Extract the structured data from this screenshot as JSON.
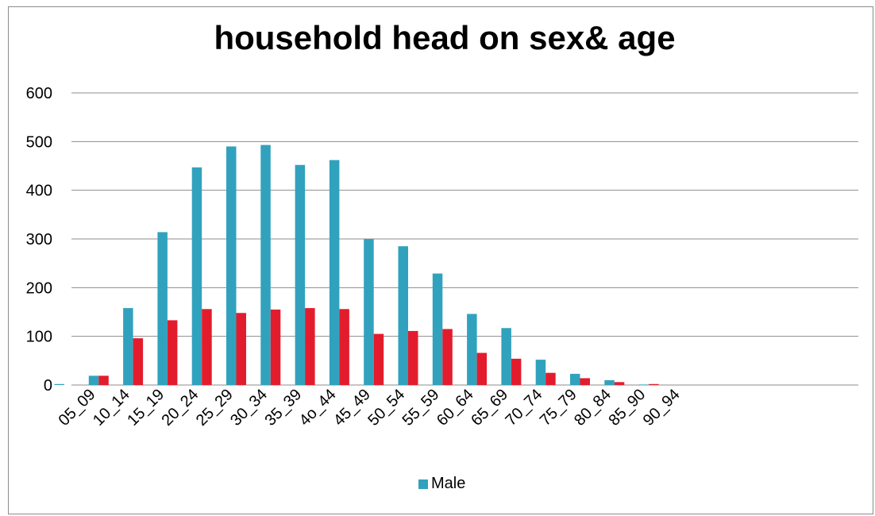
{
  "chart_data": {
    "type": "bar",
    "title": "household head on sex& age",
    "xlabel": "",
    "ylabel": "",
    "ylim": [
      0,
      600
    ],
    "yticks": [
      0,
      100,
      200,
      300,
      400,
      500,
      600
    ],
    "grid": true,
    "legend_position": "bottom",
    "categories": [
      "05_09",
      "10_14",
      "15_19",
      "20_24",
      "25_29",
      "30_34",
      "35_39",
      "4o_44",
      "45_49",
      "50_54",
      "55_59",
      "60_64",
      "65_69",
      "70_74",
      "75_79",
      "80_84",
      "85_90",
      "90_94"
    ],
    "series": [
      {
        "name": "Male",
        "color": "#31a2bd",
        "values": [
          2,
          19,
          158,
          314,
          447,
          490,
          493,
          452,
          462,
          300,
          285,
          229,
          146,
          117,
          52,
          23,
          10,
          1
        ]
      },
      {
        "color": "#e31c2d",
        "values": [
          0,
          19,
          96,
          133,
          156,
          148,
          155,
          158,
          156,
          105,
          111,
          115,
          66,
          54,
          25,
          14,
          6,
          2
        ]
      }
    ]
  }
}
